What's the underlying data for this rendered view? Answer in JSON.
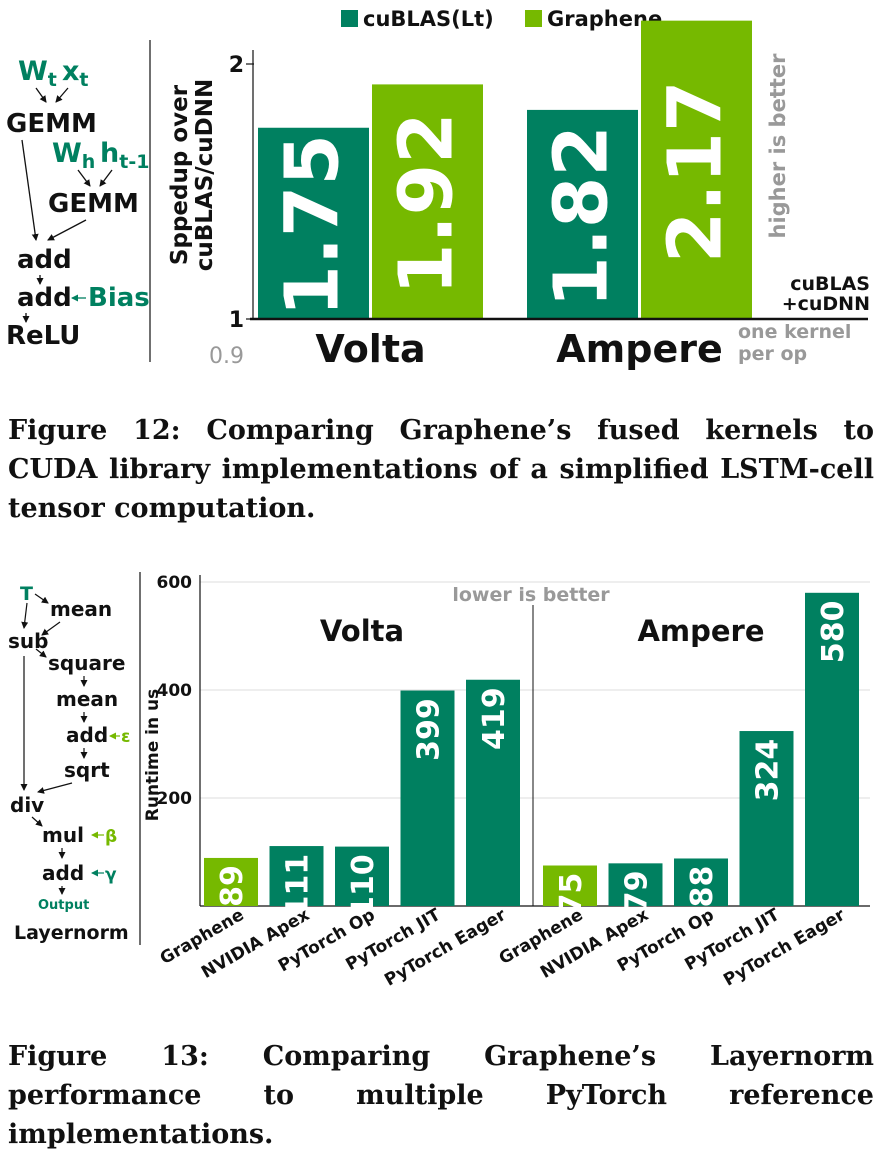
{
  "colors": {
    "cublas": "#008060",
    "graphene": "#76b900",
    "hint": "#999999",
    "text": "#111111"
  },
  "figure12": {
    "caption": "Figure 12: Comparing Graphene’s fused kernels to CUDA library implementations of a simplified LSTM-cell tensor computation.",
    "legend": [
      "cuBLAS(Lt)",
      "Graphene"
    ],
    "hint_top": "higher is better",
    "baseline_label_1": "cuBLAS",
    "baseline_label_2": "+cuDNN",
    "hint_bottom_1": "one kernel",
    "hint_bottom_2": "per op",
    "diagram": {
      "wt": "W",
      "wt_sub": "t",
      "xt": "x",
      "xt_sub": "t",
      "gemm1": "GEMM",
      "wh": "W",
      "wh_sub": "h",
      "ht": "h",
      "ht_sub": "t-1",
      "gemm2": "GEMM",
      "add1": "add",
      "add2": "add",
      "bias": "Bias",
      "relu": "ReLU"
    }
  },
  "figure13": {
    "caption": "Figure 13: Comparing Graphene’s Layernorm performance to multiple PyTorch reference implementations.",
    "hint": "lower is better",
    "diagram": {
      "t": "T",
      "mean1": "mean",
      "sub": "sub",
      "square": "square",
      "mean2": "mean",
      "add1": "add",
      "eps": "ε",
      "sqrt": "sqrt",
      "div": "div",
      "mul": "mul",
      "beta": "β",
      "add2": "add",
      "gamma": "γ",
      "output": "Output",
      "title": "Layernorm"
    }
  },
  "chart_data": [
    {
      "type": "bar",
      "ylabel_line1": "Sppedup over",
      "ylabel_line2": "cuBLAS/cuDNN",
      "ylim": [
        0.9,
        2.2
      ],
      "yticks": [
        "0.9",
        "1",
        "2"
      ],
      "categories": [
        "Volta",
        "Ampere"
      ],
      "series": [
        {
          "name": "cuBLAS(Lt)",
          "values": [
            1.75,
            1.82
          ],
          "labels": [
            "1.75",
            "1.82"
          ]
        },
        {
          "name": "Graphene",
          "values": [
            1.92,
            2.17
          ],
          "labels": [
            "1.92",
            "2.17"
          ]
        }
      ]
    },
    {
      "type": "bar",
      "ylabel": "Runtime in us",
      "ylim": [
        0,
        600
      ],
      "yticks": [
        "200",
        "400",
        "600"
      ],
      "groups": [
        "Volta",
        "Ampere"
      ],
      "categories": [
        "Graphene",
        "NVIDIA Apex",
        "PyTorch Op",
        "PyTorch JIT",
        "PyTorch Eager"
      ],
      "series": [
        {
          "name": "Volta",
          "values": [
            89,
            111,
            110,
            399,
            419
          ],
          "labels": [
            "89",
            "111",
            "110",
            "399",
            "419"
          ]
        },
        {
          "name": "Ampere",
          "values": [
            75,
            79,
            88,
            324,
            580
          ],
          "labels": [
            "75",
            "79",
            "88",
            "324",
            "580"
          ]
        }
      ]
    }
  ]
}
